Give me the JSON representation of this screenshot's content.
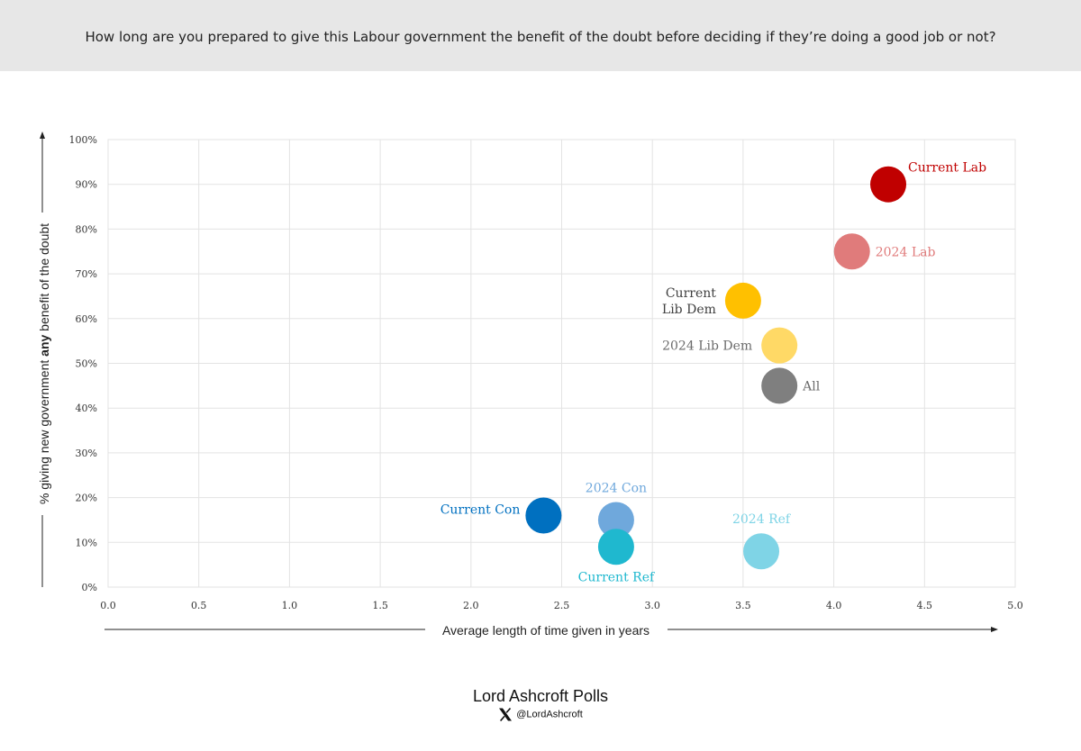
{
  "header": {
    "question": "How long are you prepared to give this Labour government the benefit of the doubt before deciding if they’re doing a good job or not?"
  },
  "footer": {
    "brand": "Lord Ashcroft Polls",
    "handle": "@LordAshcroft",
    "social_icon": "x-logo-icon"
  },
  "chart_data": {
    "type": "scatter",
    "title": "",
    "xlabel": "Average length of time given in years",
    "ylabel": {
      "pre": "% giving  new  government ",
      "bold": "any",
      "post": " benefit of the doubt"
    },
    "xlim": [
      0,
      5
    ],
    "ylim": [
      0,
      100
    ],
    "x_ticks": [
      "0.0",
      "0.5",
      "1.0",
      "1.5",
      "2.0",
      "2.5",
      "3.0",
      "3.5",
      "4.0",
      "4.5",
      "5.0"
    ],
    "y_ticks": [
      "0%",
      "10%",
      "20%",
      "30%",
      "40%",
      "50%",
      "60%",
      "70%",
      "80%",
      "90%",
      "100%"
    ],
    "grid": true,
    "points": [
      {
        "label": [
          "Current Lab"
        ],
        "x": 4.3,
        "y": 90,
        "color": "#c00000",
        "label_color": "#c00000",
        "label_pos": "upper-right"
      },
      {
        "label": [
          "2024 Lab"
        ],
        "x": 4.1,
        "y": 75,
        "color": "#e07b7b",
        "label_color": "#e07b7b",
        "label_pos": "right"
      },
      {
        "label": [
          "Current",
          "Lib Dem"
        ],
        "x": 3.5,
        "y": 64,
        "color": "#ffc000",
        "label_color": "#404040",
        "label_pos": "left"
      },
      {
        "label": [
          "2024 Lib Dem"
        ],
        "x": 3.7,
        "y": 54,
        "color": "#ffd966",
        "label_color": "#6b6b6b",
        "label_pos": "left"
      },
      {
        "label": [
          "All"
        ],
        "x": 3.7,
        "y": 45,
        "color": "#7f7f7f",
        "label_color": "#6b6b6b",
        "label_pos": "right"
      },
      {
        "label": [
          "Current Con"
        ],
        "x": 2.4,
        "y": 16,
        "color": "#0070c0",
        "label_color": "#0070c0",
        "label_pos": "upper-left"
      },
      {
        "label": [
          "2024 Con"
        ],
        "x": 2.8,
        "y": 15,
        "color": "#6fa8dc",
        "label_color": "#6fa8dc",
        "label_pos": "above"
      },
      {
        "label": [
          "Current Ref"
        ],
        "x": 2.8,
        "y": 9,
        "color": "#1fb8cf",
        "label_color": "#1fb8cf",
        "label_pos": "below"
      },
      {
        "label": [
          "2024 Ref"
        ],
        "x": 3.6,
        "y": 8,
        "color": "#7fd4e6",
        "label_color": "#7fd4e6",
        "label_pos": "above"
      }
    ]
  }
}
